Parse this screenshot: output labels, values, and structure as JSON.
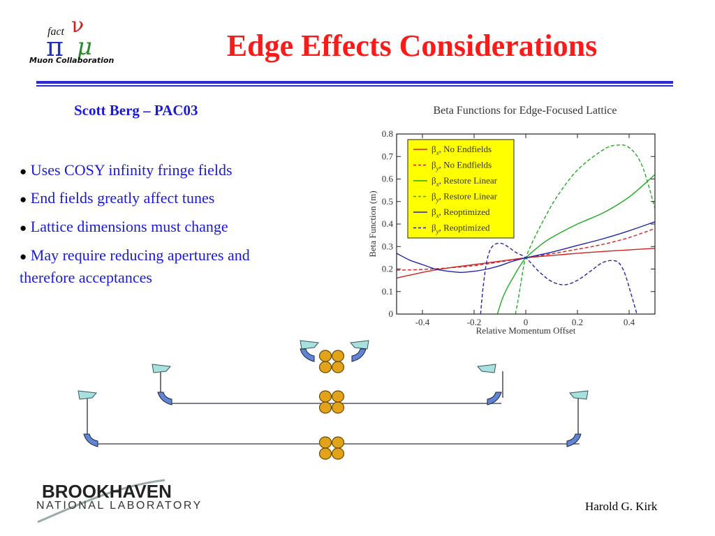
{
  "slide": {
    "title": "Edge Effects Considerations",
    "subtitle": "Scott Berg – PAC03",
    "bullets": [
      {
        "dot": "●",
        "text": "Uses COSY infinity fringe fields"
      },
      {
        "dot": "●",
        "text": "End fields greatly affect tunes"
      },
      {
        "dot": "●",
        "text": "Lattice dimensions must change"
      },
      {
        "dot": "●",
        "text": "May require reducing apertures and therefore acceptances"
      }
    ],
    "author": "Harold G. Kirk",
    "colors": {
      "title": "#ff1a1a",
      "text": "#1a1ad6",
      "rule": "#2b2bd6"
    }
  },
  "logos": {
    "muon": {
      "fact": "fact",
      "pi": "π",
      "nu": "ν",
      "mu": "μ",
      "caption": "Muon Collaboration"
    },
    "bnl": {
      "top": "BROOKHAVEN",
      "bottom": "NATIONAL LABORATORY"
    }
  },
  "chart_data": {
    "type": "line",
    "title": "Beta Functions for Edge-Focused Lattice",
    "xlabel": "Relative Momentum Offset",
    "ylabel": "Beta Function (m)",
    "xlim": [
      -0.5,
      0.5
    ],
    "ylim": [
      0,
      0.8
    ],
    "xticks": [
      -0.4,
      -0.2,
      0,
      0.2,
      0.4
    ],
    "xtick_labels": [
      "-0.4",
      "-0.2",
      "0",
      "0.2",
      "0.4"
    ],
    "yticks": [
      0,
      0.1,
      0.2,
      0.3,
      0.4,
      0.5,
      0.6,
      0.7,
      0.8
    ],
    "ytick_labels": [
      "0",
      "0.1",
      "0.2",
      "0.3",
      "0.4",
      "0.5",
      "0.6",
      "0.7",
      "0.8"
    ],
    "legend_position": "top-left",
    "legend_background": "#ffff00",
    "series": [
      {
        "name": "βx, No Endfields",
        "sym": "β",
        "sub": "x",
        "label": ", No Endfields",
        "color": "#cc2222",
        "dash": false,
        "x": [
          -0.5,
          -0.4,
          -0.3,
          -0.2,
          -0.1,
          0,
          0.1,
          0.2,
          0.3,
          0.4,
          0.5
        ],
        "y": [
          0.16,
          0.185,
          0.205,
          0.22,
          0.235,
          0.25,
          0.26,
          0.27,
          0.278,
          0.285,
          0.292
        ]
      },
      {
        "name": "βy, No Endfields",
        "sym": "β",
        "sub": "y",
        "label": ", No Endfields",
        "color": "#cc2222",
        "dash": true,
        "x": [
          -0.5,
          -0.4,
          -0.3,
          -0.2,
          -0.1,
          0,
          0.1,
          0.2,
          0.3,
          0.4,
          0.5
        ],
        "y": [
          0.195,
          0.198,
          0.205,
          0.215,
          0.232,
          0.25,
          0.268,
          0.288,
          0.31,
          0.34,
          0.38
        ]
      },
      {
        "name": "βx, Restore Linear",
        "sym": "β",
        "sub": "x",
        "label": ", Restore Linear",
        "color": "#22aa22",
        "dash": false,
        "x": [
          -0.11,
          -0.09,
          -0.07,
          -0.05,
          -0.03,
          -0.01,
          0,
          0.05,
          0.1,
          0.2,
          0.3,
          0.4,
          0.5
        ],
        "y": [
          0,
          0.07,
          0.12,
          0.16,
          0.2,
          0.235,
          0.25,
          0.3,
          0.34,
          0.4,
          0.45,
          0.52,
          0.62
        ]
      },
      {
        "name": "βy, Restore Linear",
        "sym": "β",
        "sub": "y",
        "label": ", Restore Linear",
        "color": "#22aa22",
        "dash": true,
        "x": [
          -0.04,
          -0.03,
          -0.02,
          -0.01,
          0,
          0.03,
          0.07,
          0.12,
          0.2,
          0.3,
          0.35,
          0.4,
          0.45,
          0.5
        ],
        "y": [
          0,
          0.06,
          0.13,
          0.2,
          0.25,
          0.33,
          0.42,
          0.52,
          0.64,
          0.73,
          0.75,
          0.74,
          0.66,
          0.47
        ]
      },
      {
        "name": "βx, Reoptimized",
        "sym": "β",
        "sub": "x",
        "label": ", Reoptimized",
        "color": "#2222aa",
        "dash": false,
        "x": [
          -0.5,
          -0.45,
          -0.4,
          -0.35,
          -0.3,
          -0.25,
          -0.2,
          -0.15,
          -0.1,
          -0.05,
          0,
          0.1,
          0.2,
          0.3,
          0.4,
          0.5
        ],
        "y": [
          0.27,
          0.24,
          0.22,
          0.2,
          0.19,
          0.185,
          0.19,
          0.2,
          0.215,
          0.235,
          0.25,
          0.275,
          0.305,
          0.335,
          0.37,
          0.41
        ]
      },
      {
        "name": "βy, Reoptimized",
        "sym": "β",
        "sub": "y",
        "label": ", Reoptimized",
        "color": "#2222aa",
        "dash": true,
        "x": [
          -0.175,
          -0.165,
          -0.15,
          -0.13,
          -0.1,
          -0.07,
          -0.04,
          0,
          0.05,
          0.1,
          0.15,
          0.2,
          0.25,
          0.3,
          0.35,
          0.38,
          0.41,
          0.43
        ],
        "y": [
          0,
          0.12,
          0.24,
          0.3,
          0.315,
          0.3,
          0.275,
          0.25,
          0.19,
          0.145,
          0.13,
          0.15,
          0.19,
          0.23,
          0.235,
          0.19,
          0.08,
          0
        ]
      }
    ]
  }
}
